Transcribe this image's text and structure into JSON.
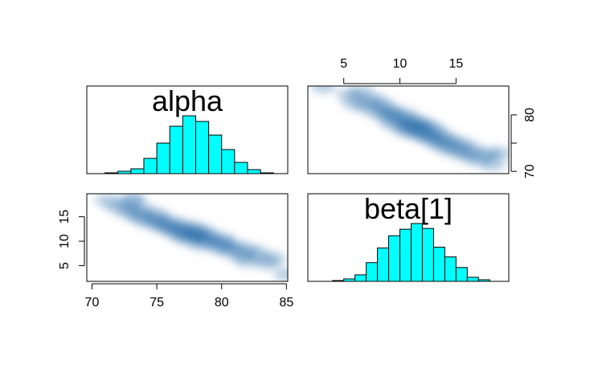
{
  "chart_data": {
    "type": "pairs",
    "variables": [
      "alpha",
      "beta[1]"
    ],
    "alpha_lim": [
      69.6,
      85.1
    ],
    "beta_lim": [
      1.8,
      19.7
    ],
    "alpha_bottom_ticks": [
      70,
      75,
      80,
      85
    ],
    "alpha_right_ticks": [
      70,
      {
        "value": 75,
        "label": null
      },
      80
    ],
    "beta_top_ticks": [
      5,
      10,
      15
    ],
    "beta_left_ticks": [
      5,
      10,
      15
    ],
    "hist_color": "#00ffff",
    "density_color": "#08519c",
    "histograms": [
      {
        "bins": [
          71,
          72,
          73,
          74,
          75,
          76,
          77,
          78,
          79,
          80,
          81,
          82,
          83,
          84
        ],
        "counts": [
          1,
          3,
          6,
          19,
          38,
          59,
          72,
          65,
          48,
          30,
          14,
          5,
          1
        ]
      },
      {
        "bins": [
          4,
          5,
          6,
          7,
          8,
          9,
          10,
          11,
          12,
          13,
          14,
          15,
          16,
          17,
          18
        ],
        "counts": [
          1,
          3,
          8,
          23,
          41,
          56,
          64,
          71,
          65,
          42,
          30,
          17,
          5,
          2
        ]
      }
    ],
    "samples": {
      "beta": [
        3.2,
        5.5,
        6.0,
        6.5,
        7.0,
        7.5,
        8.0,
        8.3,
        8.8,
        9.0,
        9.3,
        9.6,
        10.0,
        10.3,
        10.5,
        10.8,
        11.0,
        11.2,
        11.5,
        11.7,
        12.0,
        12.2,
        12.5,
        12.8,
        13.0,
        13.3,
        13.6,
        14.0,
        14.3,
        14.7,
        15.2,
        15.6,
        16.0,
        16.5,
        17.0,
        17.8,
        18.3,
        18.8
      ],
      "alpha": [
        85.0,
        83.5,
        82.0,
        84.0,
        81.5,
        82.8,
        80.5,
        82.0,
        79.8,
        81.0,
        78.5,
        80.2,
        79.0,
        77.5,
        80.0,
        78.2,
        77.0,
        79.0,
        78.0,
        76.5,
        78.5,
        77.2,
        76.0,
        77.8,
        75.5,
        76.8,
        74.8,
        76.0,
        74.0,
        75.2,
        73.5,
        74.8,
        72.8,
        73.8,
        72.0,
        73.0,
        71.2,
        73.2
      ]
    }
  }
}
